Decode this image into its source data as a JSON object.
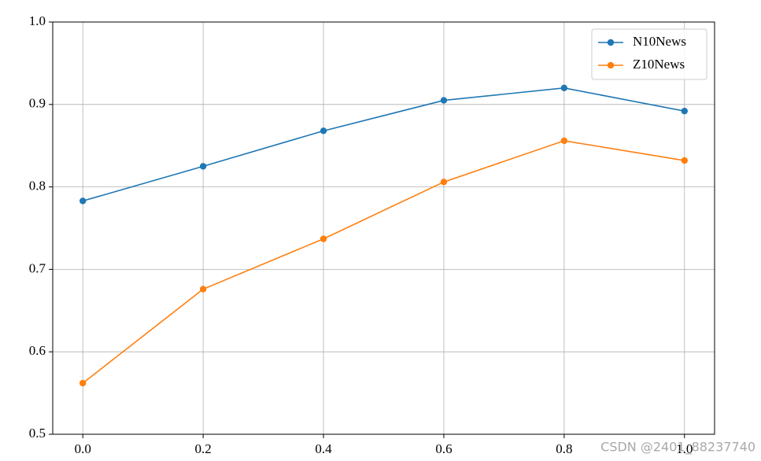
{
  "chart_data": {
    "type": "line",
    "x": [
      {
        "value": 0,
        "label": "0.0"
      },
      0.2,
      0.4,
      0.6,
      0.8,
      {
        "value": 1,
        "label": "1.0"
      }
    ],
    "series": [
      {
        "name": "N10News",
        "color": "#1f77b4",
        "values": [
          0.783,
          0.825,
          0.868,
          0.905,
          0.92,
          0.892
        ]
      },
      {
        "name": "Z10News",
        "color": "#ff7f0e",
        "values": [
          0.562,
          0.676,
          0.737,
          0.806,
          0.856,
          0.832
        ]
      }
    ],
    "xlim": [
      -0.05,
      1.05
    ],
    "xticks": [
      {
        "value": 0,
        "label": "0.0"
      },
      0.2,
      0.4,
      0.6,
      0.8,
      {
        "value": 1,
        "label": "1.0"
      }
    ],
    "ylim": [
      0.5,
      1
    ],
    "yticks": [
      0.5,
      0.6,
      0.7,
      0.8,
      0.9,
      {
        "value": 1,
        "label": "1.0"
      }
    ],
    "grid": true,
    "legend": "upper-right",
    "marker": "circle"
  },
  "watermark": "CSDN @2401_88237740"
}
